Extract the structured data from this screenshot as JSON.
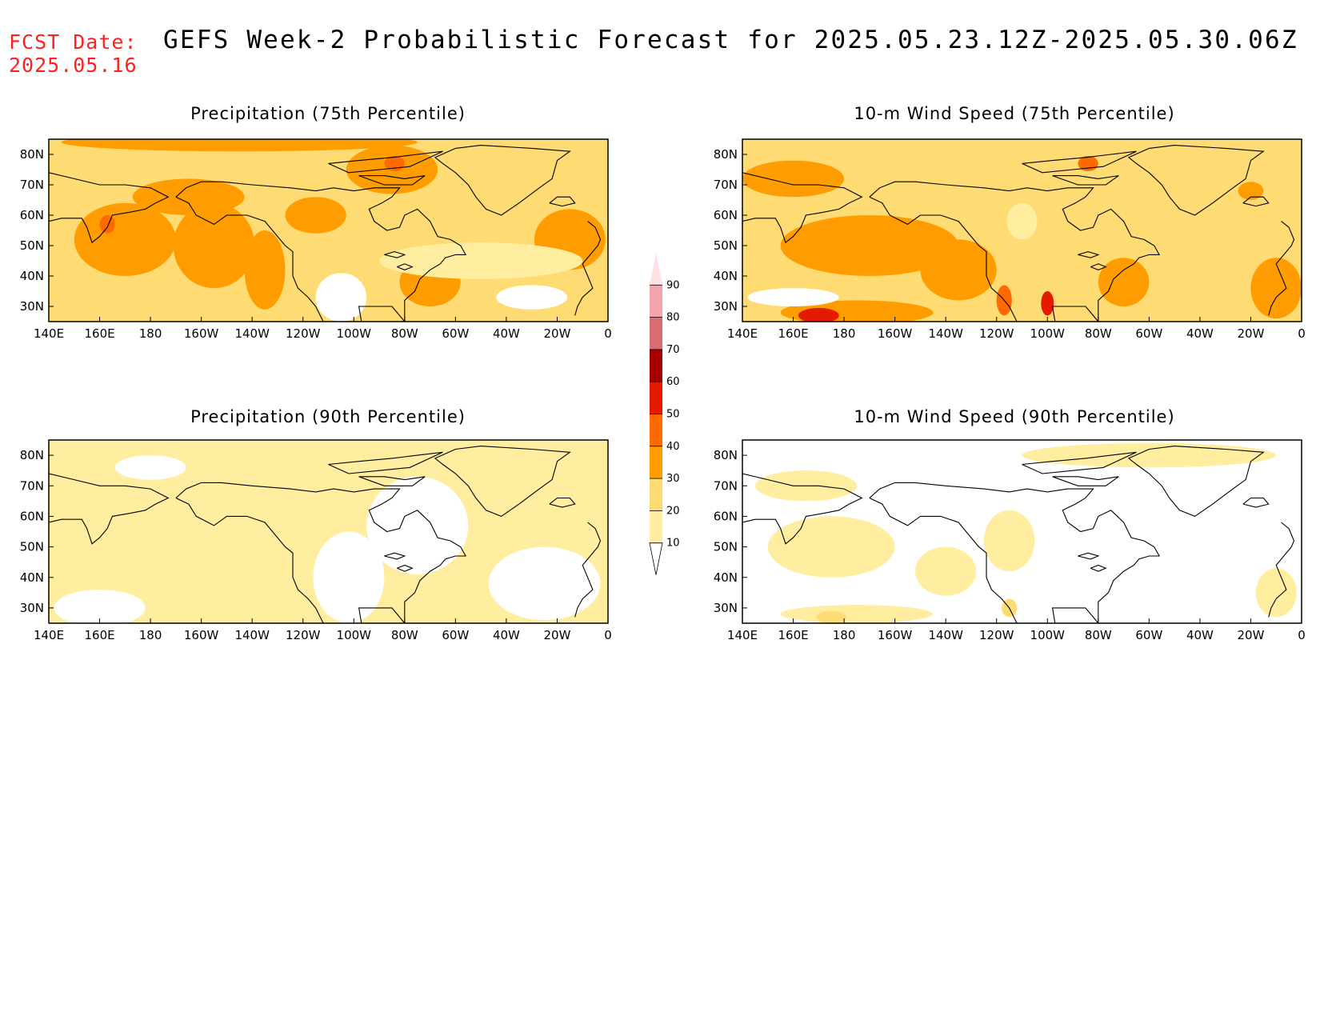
{
  "header": {
    "fcst_label": "FCST Date:",
    "fcst_date": "2025.05.16",
    "title": "GEFS Week-2 Probabilistic Forecast for 2025.05.23.12Z-2025.05.30.06Z"
  },
  "chart_data": [
    {
      "type": "heatmap",
      "title": "Precipitation (75th Percentile)",
      "x_ticks": [
        "140E",
        "160E",
        "180",
        "160W",
        "140W",
        "120W",
        "100W",
        "80W",
        "60W",
        "40W",
        "20W",
        "0"
      ],
      "y_ticks": [
        "30N",
        "40N",
        "50N",
        "60N",
        "70N",
        "80N"
      ],
      "lon_range": [
        140,
        360
      ],
      "lat_range": [
        25,
        85
      ],
      "base_level": 20,
      "blobs": [
        {
          "lon": 170,
          "lat": 52,
          "rlon": 20,
          "rlat": 12,
          "level": 30
        },
        {
          "lon": 205,
          "lat": 50,
          "rlon": 16,
          "rlat": 14,
          "level": 30
        },
        {
          "lon": 225,
          "lat": 42,
          "rlon": 8,
          "rlat": 13,
          "level": 30
        },
        {
          "lon": 195,
          "lat": 66,
          "rlon": 22,
          "rlat": 6,
          "level": 30
        },
        {
          "lon": 245,
          "lat": 60,
          "rlon": 12,
          "rlat": 6,
          "level": 30
        },
        {
          "lon": 275,
          "lat": 75,
          "rlon": 18,
          "rlat": 8,
          "level": 30
        },
        {
          "lon": 290,
          "lat": 38,
          "rlon": 12,
          "rlat": 8,
          "level": 30
        },
        {
          "lon": 345,
          "lat": 52,
          "rlon": 14,
          "rlat": 10,
          "level": 30
        },
        {
          "lon": 215,
          "lat": 84,
          "rlon": 70,
          "rlat": 3,
          "level": 30
        },
        {
          "lon": 163,
          "lat": 57,
          "rlon": 3,
          "rlat": 3,
          "level": 40
        },
        {
          "lon": 276,
          "lat": 77,
          "rlon": 4,
          "rlat": 2.5,
          "level": 40
        },
        {
          "lon": 310,
          "lat": 45,
          "rlon": 40,
          "rlat": 6,
          "level": 10
        },
        {
          "lon": 255,
          "lat": 33,
          "rlon": 10,
          "rlat": 8,
          "level": 0
        },
        {
          "lon": 330,
          "lat": 33,
          "rlon": 14,
          "rlat": 4,
          "level": 0
        }
      ]
    },
    {
      "type": "heatmap",
      "title": "10-m Wind Speed (75th Percentile)",
      "x_ticks": [
        "140E",
        "160E",
        "180",
        "160W",
        "140W",
        "120W",
        "100W",
        "80W",
        "60W",
        "40W",
        "20W",
        "0"
      ],
      "y_ticks": [
        "30N",
        "40N",
        "50N",
        "60N",
        "70N",
        "80N"
      ],
      "lon_range": [
        140,
        360
      ],
      "lat_range": [
        25,
        85
      ],
      "base_level": 20,
      "blobs": [
        {
          "lon": 190,
          "lat": 50,
          "rlon": 35,
          "rlat": 10,
          "level": 30
        },
        {
          "lon": 160,
          "lat": 72,
          "rlon": 20,
          "rlat": 6,
          "level": 30
        },
        {
          "lon": 225,
          "lat": 42,
          "rlon": 15,
          "rlat": 10,
          "level": 30
        },
        {
          "lon": 290,
          "lat": 38,
          "rlon": 10,
          "rlat": 8,
          "level": 30
        },
        {
          "lon": 350,
          "lat": 36,
          "rlon": 10,
          "rlat": 10,
          "level": 30
        },
        {
          "lon": 185,
          "lat": 28,
          "rlon": 30,
          "rlat": 4,
          "level": 30
        },
        {
          "lon": 170,
          "lat": 27,
          "rlon": 8,
          "rlat": 2.5,
          "level": 50
        },
        {
          "lon": 243,
          "lat": 32,
          "rlon": 3,
          "rlat": 5,
          "level": 40
        },
        {
          "lon": 260,
          "lat": 31,
          "rlon": 2.5,
          "rlat": 4,
          "level": 50
        },
        {
          "lon": 276,
          "lat": 77,
          "rlon": 4,
          "rlat": 2.5,
          "level": 40
        },
        {
          "lon": 340,
          "lat": 68,
          "rlon": 5,
          "rlat": 3,
          "level": 30
        },
        {
          "lon": 160,
          "lat": 33,
          "rlon": 18,
          "rlat": 3,
          "level": 0
        },
        {
          "lon": 250,
          "lat": 58,
          "rlon": 6,
          "rlat": 6,
          "level": 10
        }
      ]
    },
    {
      "type": "heatmap",
      "title": "Precipitation (90th Percentile)",
      "x_ticks": [
        "140E",
        "160E",
        "180",
        "160W",
        "140W",
        "120W",
        "100W",
        "80W",
        "60W",
        "40W",
        "20W",
        "0"
      ],
      "y_ticks": [
        "30N",
        "40N",
        "50N",
        "60N",
        "70N",
        "80N"
      ],
      "lon_range": [
        140,
        360
      ],
      "lat_range": [
        25,
        85
      ],
      "base_level": 10,
      "blobs": [
        {
          "lon": 285,
          "lat": 57,
          "rlon": 20,
          "rlat": 16,
          "level": 0
        },
        {
          "lon": 258,
          "lat": 40,
          "rlon": 14,
          "rlat": 15,
          "level": 0
        },
        {
          "lon": 180,
          "lat": 76,
          "rlon": 14,
          "rlat": 4,
          "level": 0
        },
        {
          "lon": 335,
          "lat": 38,
          "rlon": 22,
          "rlat": 12,
          "level": 0
        },
        {
          "lon": 160,
          "lat": 30,
          "rlon": 18,
          "rlat": 6,
          "level": 0
        }
      ]
    },
    {
      "type": "heatmap",
      "title": "10-m Wind Speed (90th Percentile)",
      "x_ticks": [
        "140E",
        "160E",
        "180",
        "160W",
        "140W",
        "120W",
        "100W",
        "80W",
        "60W",
        "40W",
        "20W",
        "0"
      ],
      "y_ticks": [
        "30N",
        "40N",
        "50N",
        "60N",
        "70N",
        "80N"
      ],
      "lon_range": [
        140,
        360
      ],
      "lat_range": [
        25,
        85
      ],
      "base_level": 0,
      "blobs": [
        {
          "lon": 175,
          "lat": 50,
          "rlon": 25,
          "rlat": 10,
          "level": 10
        },
        {
          "lon": 165,
          "lat": 70,
          "rlon": 20,
          "rlat": 5,
          "level": 10
        },
        {
          "lon": 220,
          "lat": 42,
          "rlon": 12,
          "rlat": 8,
          "level": 10
        },
        {
          "lon": 245,
          "lat": 52,
          "rlon": 10,
          "rlat": 10,
          "level": 10
        },
        {
          "lon": 185,
          "lat": 28,
          "rlon": 30,
          "rlat": 3,
          "level": 10
        },
        {
          "lon": 175,
          "lat": 27,
          "rlon": 6,
          "rlat": 2,
          "level": 20
        },
        {
          "lon": 245,
          "lat": 30,
          "rlon": 3,
          "rlat": 3,
          "level": 20
        },
        {
          "lon": 350,
          "lat": 35,
          "rlon": 8,
          "rlat": 8,
          "level": 10
        },
        {
          "lon": 300,
          "lat": 80,
          "rlon": 50,
          "rlat": 4,
          "level": 10
        }
      ]
    }
  ],
  "colorbar": {
    "levels": [
      10,
      20,
      30,
      40,
      50,
      60,
      70,
      80,
      90
    ],
    "colors": [
      "#ffffff",
      "#ffeda0",
      "#ffdb73",
      "#ff9d00",
      "#ff6a00",
      "#e41a00",
      "#a50000",
      "#d96b73",
      "#f2a3ab",
      "#ffe0e3"
    ]
  }
}
